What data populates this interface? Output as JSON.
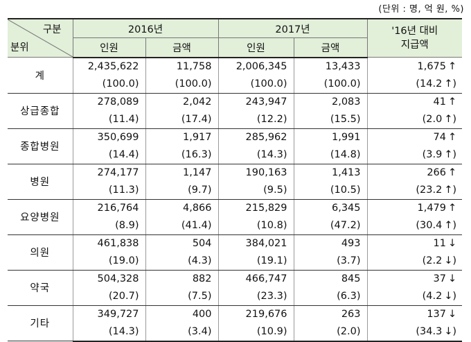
{
  "unit_note": "(단위 : 명, 억 원, %)",
  "header": {
    "corner_top": "구분",
    "corner_bottom": "분위",
    "year1": "2016년",
    "year2": "2017년",
    "comparison": "'16년 대비\n지급액",
    "col_people": "인원",
    "col_amount": "금액"
  },
  "rows": [
    {
      "category": "계",
      "p2016": "2,435,622",
      "a2016": "11,758",
      "p2017": "2,006,345",
      "a2017": "13,433",
      "change": "1,675",
      "change_dir": "↑",
      "pp2016": "(100.0)",
      "pa2016": "(100.0)",
      "pp2017": "(100.0)",
      "pa2017": "(100.0)",
      "pchange": "(14.2",
      "pchange_dir": "↑",
      "pchange_close": ")"
    },
    {
      "category": "상급종합",
      "p2016": "278,089",
      "a2016": "2,042",
      "p2017": "243,947",
      "a2017": "2,083",
      "change": "41",
      "change_dir": "↑",
      "pp2016": "(11.4)",
      "pa2016": "(17.4)",
      "pp2017": "(12.2)",
      "pa2017": "(15.5)",
      "pchange": "(2.0",
      "pchange_dir": "↑",
      "pchange_close": ")"
    },
    {
      "category": "종합병원",
      "p2016": "350,699",
      "a2016": "1,917",
      "p2017": "285,962",
      "a2017": "1,991",
      "change": "74",
      "change_dir": "↑",
      "pp2016": "(14.4)",
      "pa2016": "(16.3)",
      "pp2017": "(14.3)",
      "pa2017": "(14.8)",
      "pchange": "(3.9",
      "pchange_dir": "↑",
      "pchange_close": ")"
    },
    {
      "category": "병원",
      "p2016": "274,177",
      "a2016": "1,147",
      "p2017": "190,163",
      "a2017": "1,413",
      "change": "266",
      "change_dir": "↑",
      "pp2016": "(11.3)",
      "pa2016": "(9.7)",
      "pp2017": "(9.5)",
      "pa2017": "(10.5)",
      "pchange": "(23.2",
      "pchange_dir": "↑",
      "pchange_close": ")"
    },
    {
      "category": "요양병원",
      "p2016": "216,764",
      "a2016": "4,866",
      "p2017": "215,829",
      "a2017": "6,345",
      "change": "1,479",
      "change_dir": "↑",
      "pp2016": "(8.9)",
      "pa2016": "(41.4)",
      "pp2017": "(10.8)",
      "pa2017": "(47.2)",
      "pchange": "(30.4",
      "pchange_dir": "↑",
      "pchange_close": ")"
    },
    {
      "category": "의원",
      "p2016": "461,838",
      "a2016": "504",
      "p2017": "384,021",
      "a2017": "493",
      "change": "11",
      "change_dir": "↓",
      "pp2016": "(19.0)",
      "pa2016": "(4.3)",
      "pp2017": "(19.1)",
      "pa2017": "(3.7)",
      "pchange": "(2.2",
      "pchange_dir": "↓",
      "pchange_close": ")"
    },
    {
      "category": "약국",
      "p2016": "504,328",
      "a2016": "882",
      "p2017": "466,747",
      "a2017": "845",
      "change": "37",
      "change_dir": "↓",
      "pp2016": "(20.7)",
      "pa2016": "(7.5)",
      "pp2017": "(23.3)",
      "pa2017": "(6.3)",
      "pchange": "(4.2",
      "pchange_dir": "↓",
      "pchange_close": ")"
    },
    {
      "category": "기타",
      "p2016": "349,727",
      "a2016": "400",
      "p2017": "219,676",
      "a2017": "263",
      "change": "137",
      "change_dir": "↓",
      "pp2016": "(14.3)",
      "pa2016": "(3.4)",
      "pp2017": "(10.9)",
      "pa2017": "(2.0)",
      "pchange": "(34.3",
      "pchange_dir": "↓",
      "pchange_close": ")"
    }
  ],
  "colors": {
    "header_bg": "#e2efd9"
  }
}
